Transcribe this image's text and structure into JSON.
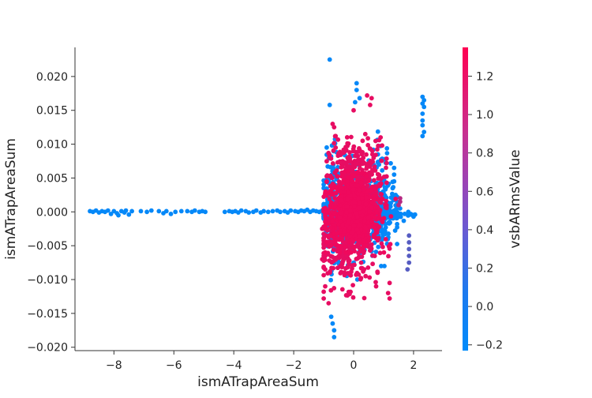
{
  "chart_data": {
    "type": "scatter",
    "title": "",
    "xlabel": "ismATrapAreaSum",
    "ylabel": "ismATrapAreaSum",
    "xlim": [
      -9.3,
      2.95
    ],
    "ylim": [
      -0.0205,
      0.0243
    ],
    "x_ticks": [
      -8,
      -6,
      -4,
      -2,
      0,
      2
    ],
    "x_tick_labels": [
      "−8",
      "−6",
      "−4",
      "−2",
      "0",
      "2"
    ],
    "y_ticks": [
      -0.02,
      -0.015,
      -0.01,
      -0.005,
      0.0,
      0.005,
      0.01,
      0.015,
      0.02
    ],
    "y_tick_labels": [
      "−0.020",
      "−0.015",
      "−0.010",
      "−0.005",
      "0.000",
      "0.005",
      "0.010",
      "0.015",
      "0.020"
    ],
    "grid": false,
    "colorbar": {
      "label": "vsbARmsValue",
      "range": [
        -0.23,
        1.35
      ],
      "ticks": [
        -0.2,
        0.0,
        0.2,
        0.4,
        0.6,
        0.8,
        1.0,
        1.2
      ],
      "tick_labels": [
        "−0.2",
        "0.0",
        "0.2",
        "0.4",
        "0.6",
        "0.8",
        "1.0",
        "1.2"
      ],
      "color_low": "#008bfb",
      "color_high": "#ff0052"
    },
    "points": [
      [
        -8.8,
        0.0001,
        -0.2
      ],
      [
        -8.7,
        0.0,
        -0.2
      ],
      [
        -8.6,
        0.0002,
        -0.2
      ],
      [
        -8.5,
        -0.0001,
        -0.2
      ],
      [
        -8.4,
        0.0001,
        -0.2
      ],
      [
        -8.3,
        0.0,
        -0.2
      ],
      [
        -8.2,
        0.0002,
        -0.2
      ],
      [
        -8.1,
        -0.0003,
        -0.2
      ],
      [
        -8.0,
        0.0001,
        -0.2
      ],
      [
        -7.9,
        -0.0002,
        -0.2
      ],
      [
        -7.85,
        -0.0005,
        -0.2
      ],
      [
        -7.75,
        0.0001,
        -0.2
      ],
      [
        -7.65,
        -0.0001,
        -0.2
      ],
      [
        -7.6,
        0.0002,
        -0.2
      ],
      [
        -7.5,
        -0.0004,
        -0.2
      ],
      [
        -7.4,
        0.0001,
        -0.2
      ],
      [
        -7.1,
        0.0001,
        -0.2
      ],
      [
        -6.9,
        0.0,
        -0.2
      ],
      [
        -6.75,
        0.0002,
        -0.2
      ],
      [
        -6.5,
        0.0001,
        -0.2
      ],
      [
        -6.35,
        -0.0002,
        -0.2
      ],
      [
        -6.25,
        0.0001,
        -0.2
      ],
      [
        -6.1,
        -0.0003,
        -0.2
      ],
      [
        -5.95,
        0.0,
        -0.2
      ],
      [
        -5.75,
        0.0001,
        -0.2
      ],
      [
        -5.55,
        0.0001,
        -0.2
      ],
      [
        -5.4,
        0.0,
        -0.2
      ],
      [
        -5.3,
        0.0002,
        -0.2
      ],
      [
        -5.15,
        0.0,
        -0.2
      ],
      [
        -5.05,
        0.0001,
        -0.2
      ],
      [
        -4.95,
        0.0,
        -0.2
      ],
      [
        -4.3,
        0.0,
        -0.2
      ],
      [
        -4.15,
        0.0001,
        -0.2
      ],
      [
        -4.05,
        0.0,
        -0.2
      ],
      [
        -3.95,
        0.0001,
        -0.2
      ],
      [
        -3.85,
        -0.0001,
        -0.2
      ],
      [
        -3.75,
        0.0002,
        -0.2
      ],
      [
        -3.6,
        0.0001,
        -0.2
      ],
      [
        -3.5,
        -0.0001,
        -0.2
      ],
      [
        -3.35,
        0.0,
        -0.2
      ],
      [
        -3.25,
        0.0002,
        -0.2
      ],
      [
        -3.1,
        -0.0001,
        -0.2
      ],
      [
        -3.0,
        0.0001,
        -0.2
      ],
      [
        -2.85,
        0.0,
        -0.2
      ],
      [
        -2.7,
        0.0001,
        -0.2
      ],
      [
        -2.55,
        0.0002,
        -0.2
      ],
      [
        -2.45,
        0.0,
        -0.2
      ],
      [
        -2.3,
        0.0001,
        -0.2
      ],
      [
        -2.2,
        -0.0001,
        -0.2
      ],
      [
        -2.1,
        0.0002,
        -0.2
      ],
      [
        -1.95,
        0.0001,
        -0.2
      ],
      [
        -1.85,
        0.0,
        -0.2
      ],
      [
        -1.75,
        0.0002,
        -0.2
      ],
      [
        -1.65,
        0.0001,
        -0.2
      ],
      [
        -1.55,
        0.0003,
        -0.2
      ],
      [
        -1.45,
        0.0,
        -0.2
      ],
      [
        -1.35,
        0.0002,
        -0.2
      ],
      [
        -1.25,
        0.0001,
        -0.2
      ],
      [
        -1.15,
        0.0,
        -0.2
      ],
      [
        -1.05,
        0.0002,
        -0.2
      ],
      [
        -0.95,
        0.0001,
        -0.2
      ],
      [
        -0.85,
        0.0,
        -0.2
      ],
      [
        -0.8,
        0.0225,
        -0.2
      ],
      [
        -0.8,
        0.0158,
        -0.2
      ],
      [
        0.1,
        0.019,
        -0.2
      ],
      [
        0.1,
        0.018,
        -0.2
      ],
      [
        0.2,
        0.0168,
        -0.2
      ],
      [
        0.05,
        0.0162,
        -0.2
      ],
      [
        -0.7,
        -0.0165,
        -0.2
      ],
      [
        -0.65,
        -0.0175,
        -0.2
      ],
      [
        -0.65,
        -0.0185,
        -0.2
      ],
      [
        -0.75,
        -0.0155,
        -0.2
      ],
      [
        1.35,
        0.0055,
        -0.2
      ],
      [
        1.35,
        0.0045,
        -0.2
      ],
      [
        1.35,
        0.0065,
        -0.2
      ],
      [
        1.3,
        0.0035,
        -0.2
      ],
      [
        1.4,
        0.0025,
        -0.2
      ],
      [
        1.45,
        0.0015,
        -0.2
      ],
      [
        1.55,
        0.0005,
        -0.2
      ],
      [
        1.7,
        -0.0003,
        -0.2
      ],
      [
        1.9,
        -0.0004,
        -0.2
      ],
      [
        2.05,
        -0.0004,
        -0.2
      ],
      [
        2.3,
        0.017,
        -0.2
      ],
      [
        2.35,
        0.0165,
        -0.2
      ],
      [
        2.3,
        0.016,
        -0.2
      ],
      [
        2.35,
        0.0155,
        -0.2
      ],
      [
        2.3,
        0.0145,
        -0.2
      ],
      [
        2.3,
        0.0135,
        -0.2
      ],
      [
        2.3,
        0.0128,
        -0.2
      ],
      [
        2.35,
        0.0118,
        -0.2
      ],
      [
        2.3,
        0.0112,
        -0.2
      ],
      [
        1.85,
        -0.0055,
        0.3
      ],
      [
        1.85,
        -0.0065,
        0.3
      ],
      [
        1.85,
        -0.0075,
        0.3
      ],
      [
        1.85,
        -0.0045,
        0.3
      ],
      [
        1.8,
        -0.0085,
        0.3
      ],
      [
        1.85,
        -0.0035,
        0.3
      ],
      [
        1.55,
        0.0015,
        0.9
      ],
      [
        1.55,
        0.002,
        0.9
      ],
      [
        1.5,
        0.001,
        0.9
      ],
      [
        -0.7,
        0.013,
        1.2
      ],
      [
        -0.65,
        0.0125,
        1.2
      ],
      [
        -0.6,
        0.0112,
        1.2
      ],
      [
        0.0,
        0.015,
        1.2
      ],
      [
        0.45,
        0.0172,
        1.2
      ],
      [
        0.6,
        0.0168,
        1.2
      ],
      [
        0.55,
        0.0158,
        1.2
      ],
      [
        0.9,
        0.011,
        1.2
      ],
      [
        0.95,
        0.0098,
        1.2
      ],
      [
        1.2,
        -0.0128,
        1.2
      ],
      [
        1.15,
        -0.012,
        1.2
      ],
      [
        1.2,
        -0.0105,
        1.2
      ],
      [
        -1.0,
        -0.0118,
        1.2
      ],
      [
        -1.0,
        -0.0128,
        1.2
      ],
      [
        -0.95,
        -0.011,
        1.2
      ],
      [
        -1.0,
        -0.0065,
        1.2
      ],
      [
        -1.05,
        -0.007,
        1.2
      ],
      [
        -0.95,
        -0.0085,
        1.2
      ],
      [
        -0.9,
        -0.0025,
        1.2
      ],
      [
        -1.05,
        -0.0025,
        1.2
      ],
      [
        0.4,
        -0.0095,
        1.2
      ],
      [
        0.35,
        -0.0085,
        1.2
      ],
      [
        0.25,
        -0.0075,
        1.2
      ],
      [
        -0.3,
        -0.009,
        1.2
      ],
      [
        -0.2,
        -0.0082,
        1.2
      ],
      [
        0.75,
        -0.011,
        1.2
      ],
      [
        0.8,
        -0.009,
        1.2
      ],
      [
        -0.6,
        0.0095,
        1.2
      ],
      [
        -0.5,
        0.0085,
        1.2
      ],
      [
        0.3,
        0.0105,
        1.2
      ]
    ],
    "clusters": [
      {
        "cx": 0.0,
        "sx": 0.45,
        "cy": 0.0,
        "sy": 0.0024,
        "xmin": -0.95,
        "xmax": 1.4,
        "ymin": -0.006,
        "ymax": 0.006,
        "n": 700,
        "c": 1.25
      },
      {
        "cx": 0.1,
        "sx": 0.45,
        "cy": 0.004,
        "sy": 0.0032,
        "xmin": -0.9,
        "xmax": 1.1,
        "ymin": -0.004,
        "ymax": 0.0145,
        "n": 420,
        "c": 1.2
      },
      {
        "cx": -0.2,
        "sx": 0.5,
        "cy": -0.004,
        "sy": 0.0035,
        "xmin": -1.0,
        "xmax": 1.2,
        "ymin": -0.0135,
        "ymax": 0.003,
        "n": 360,
        "c": 1.2
      },
      {
        "cx": 0.2,
        "sx": 0.55,
        "cy": 0.0,
        "sy": 0.0022,
        "xmin": -1.0,
        "xmax": 1.45,
        "ymin": -0.0105,
        "ymax": 0.011,
        "n": 460,
        "c": -0.2
      },
      {
        "cx": 0.2,
        "sx": 0.65,
        "cy": -0.0003,
        "sy": 0.0004,
        "xmin": -1.0,
        "xmax": 2.0,
        "ymin": -0.0015,
        "ymax": 0.001,
        "n": 360,
        "c": -0.2
      },
      {
        "cx": -0.7,
        "sx": 0.12,
        "cy": 0.0,
        "sy": 0.0045,
        "xmin": -0.9,
        "xmax": -0.5,
        "ymin": -0.013,
        "ymax": 0.0155,
        "n": 140,
        "c": -0.2
      },
      {
        "cx": 0.9,
        "sx": 0.2,
        "cy": 0.002,
        "sy": 0.004,
        "xmin": 0.5,
        "xmax": 1.4,
        "ymin": -0.008,
        "ymax": 0.0145,
        "n": 130,
        "c": -0.2
      },
      {
        "cx": 0.0,
        "sx": 0.2,
        "cy": 0.0,
        "sy": 0.004,
        "xmin": -0.4,
        "xmax": 0.4,
        "ymin": -0.01,
        "ymax": 0.013,
        "n": 120,
        "c": -0.2
      }
    ]
  }
}
